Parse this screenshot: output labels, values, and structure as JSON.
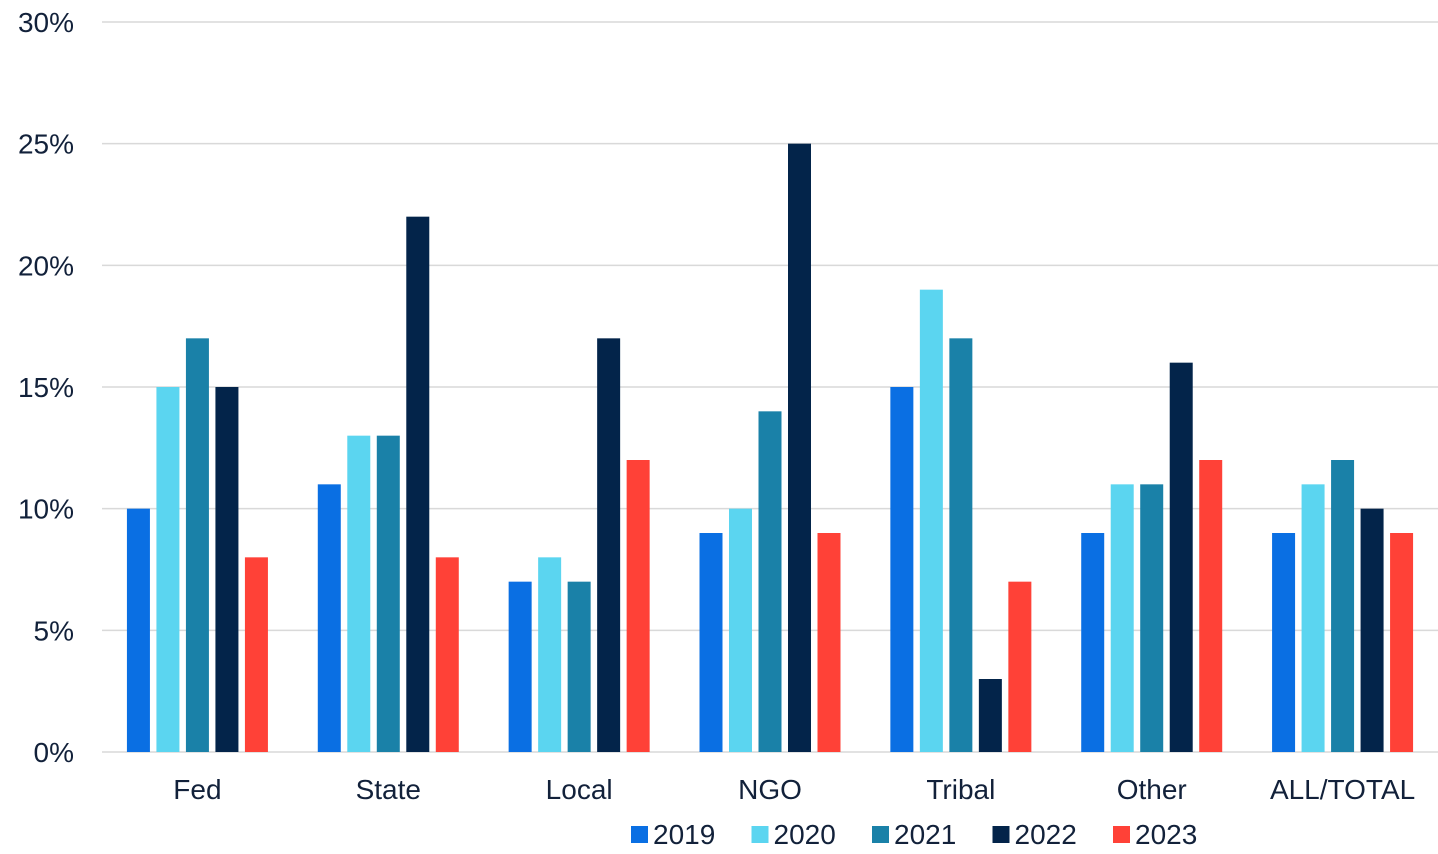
{
  "chart_data": {
    "type": "bar",
    "title": "",
    "xlabel": "",
    "ylabel": "",
    "categories": [
      "Fed",
      "State",
      "Local",
      "NGO",
      "Tribal",
      "Other",
      "ALL/TOTAL"
    ],
    "series": [
      {
        "name": "2019",
        "color": "#0a6fe3",
        "values": [
          10,
          11,
          7,
          9,
          15,
          9,
          9
        ]
      },
      {
        "name": "2020",
        "color": "#5bd5f0",
        "values": [
          15,
          13,
          8,
          10,
          19,
          11,
          11
        ]
      },
      {
        "name": "2021",
        "color": "#1a81a8",
        "values": [
          17,
          13,
          7,
          14,
          17,
          11,
          12
        ]
      },
      {
        "name": "2022",
        "color": "#03244a",
        "values": [
          15,
          22,
          17,
          25,
          3,
          16,
          10
        ]
      },
      {
        "name": "2023",
        "color": "#ff4137",
        "values": [
          8,
          8,
          12,
          9,
          7,
          12,
          9
        ]
      }
    ],
    "ylim": [
      0,
      30
    ],
    "yticks": [
      0,
      5,
      10,
      15,
      20,
      25,
      30
    ],
    "ytick_labels": [
      "0%",
      "5%",
      "10%",
      "15%",
      "20%",
      "25%",
      "30%"
    ],
    "grid": true,
    "legend_position": "bottom",
    "text_color": "#12213a",
    "grid_color": "#d9d9d9"
  }
}
